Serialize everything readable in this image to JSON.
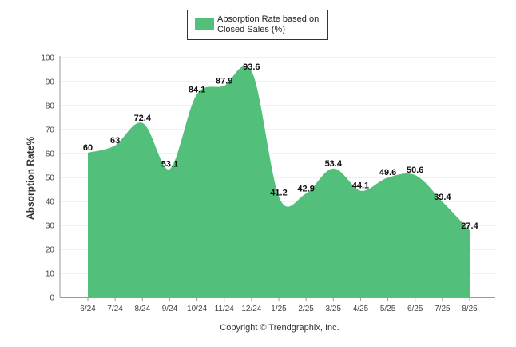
{
  "chart_data": {
    "type": "area",
    "categories": [
      "6/24",
      "7/24",
      "8/24",
      "9/24",
      "10/24",
      "11/24",
      "12/24",
      "1/25",
      "2/25",
      "3/25",
      "4/25",
      "5/25",
      "6/25",
      "7/25",
      "8/25"
    ],
    "series": [
      {
        "name": "Absorption Rate based on Closed Sales (%)",
        "values": [
          60,
          63,
          72.4,
          53.1,
          84.1,
          87.9,
          93.6,
          41.2,
          42.9,
          53.4,
          44.1,
          49.6,
          50.6,
          39.4,
          27.4
        ],
        "color": "#52c07b"
      }
    ],
    "data_labels": [
      "60",
      "63",
      "72.4",
      "53.1",
      "84.1",
      "87.9",
      "93.6",
      "41.2",
      "42.9",
      "53.4",
      "44.1",
      "49.6",
      "50.6",
      "39.4",
      "27.4"
    ],
    "ylabel": "Absorption Rate%",
    "xlabel": "",
    "ylim": [
      0,
      100
    ],
    "yticks": [
      0,
      10,
      20,
      30,
      40,
      50,
      60,
      70,
      80,
      90,
      100
    ],
    "grid": true,
    "legend_position": "top-center"
  },
  "legend": {
    "line1": "Absorption Rate based on",
    "line2": "Closed Sales (%)",
    "swatch_color": "#52c07b"
  },
  "footer": {
    "copyright": "Copyright © Trendgraphix, Inc."
  }
}
